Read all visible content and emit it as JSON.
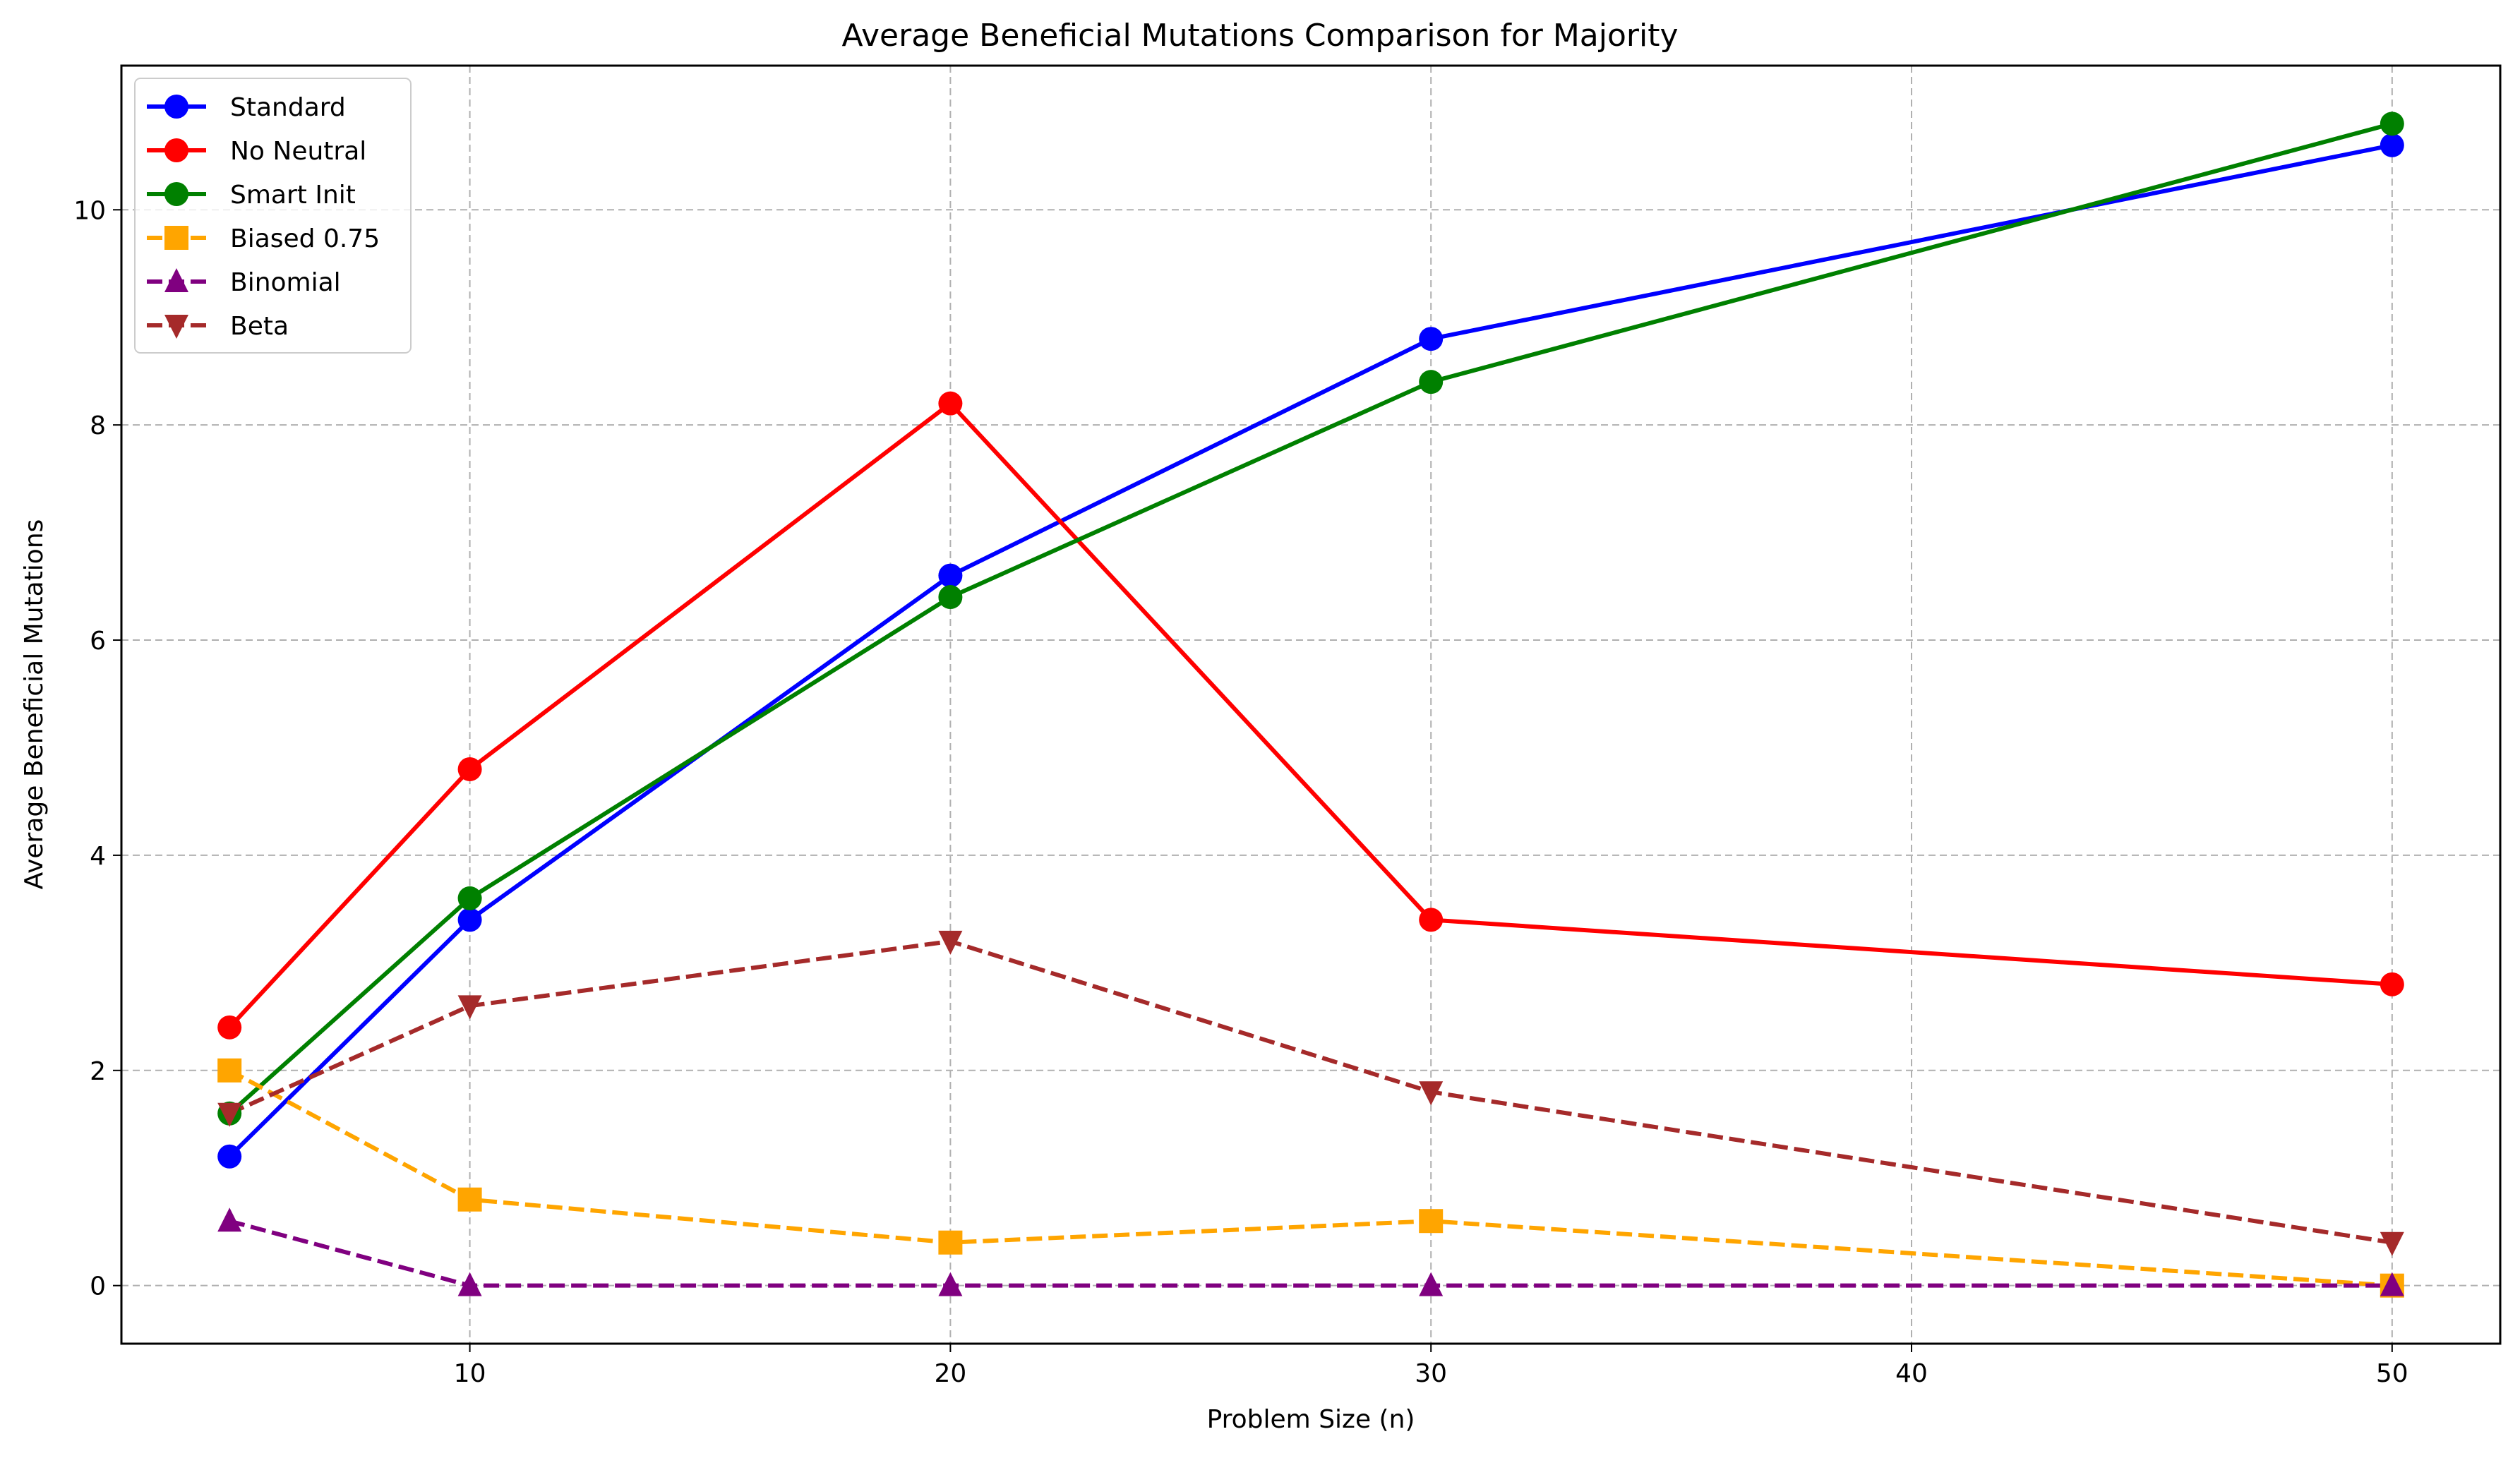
{
  "chart_data": {
    "type": "line",
    "title": "Average Beneficial Mutations Comparison for Majority",
    "xlabel": "Problem Size (n)",
    "ylabel": "Average Beneficial Mutations",
    "x": [
      5,
      10,
      20,
      30,
      50
    ],
    "xlim": [
      2.75,
      52.25
    ],
    "ylim": [
      -0.54,
      11.34
    ],
    "xticks": [
      10,
      20,
      30,
      40,
      50
    ],
    "yticks": [
      0,
      2,
      4,
      6,
      8,
      10
    ],
    "xtick_labels": [
      "10",
      "20",
      "30",
      "40",
      "50"
    ],
    "ytick_labels": [
      "0",
      "2",
      "4",
      "6",
      "8",
      "10"
    ],
    "grid": true,
    "legend_position": "upper-left",
    "series": [
      {
        "name": "Standard",
        "values": [
          1.2,
          3.4,
          6.6,
          8.8,
          10.6
        ],
        "color": "#0000ff",
        "line_style": "solid",
        "marker": "circle"
      },
      {
        "name": "No Neutral",
        "values": [
          2.4,
          4.8,
          8.2,
          3.4,
          2.8
        ],
        "color": "#ff0000",
        "line_style": "solid",
        "marker": "circle"
      },
      {
        "name": "Smart Init",
        "values": [
          1.6,
          3.6,
          6.4,
          8.4,
          10.8
        ],
        "color": "#008000",
        "line_style": "solid",
        "marker": "circle"
      },
      {
        "name": "Biased 0.75",
        "values": [
          2.0,
          0.8,
          0.4,
          0.6,
          0.0
        ],
        "color": "#ffa500",
        "line_style": "dashed",
        "marker": "square"
      },
      {
        "name": "Binomial",
        "values": [
          0.6,
          0.0,
          0.0,
          0.0,
          0.0
        ],
        "color": "#800080",
        "line_style": "dashed",
        "marker": "triangle-up"
      },
      {
        "name": "Beta",
        "values": [
          1.6,
          2.6,
          3.2,
          1.8,
          0.4
        ],
        "color": "#a52a2a",
        "line_style": "dashed",
        "marker": "triangle-down"
      }
    ]
  }
}
